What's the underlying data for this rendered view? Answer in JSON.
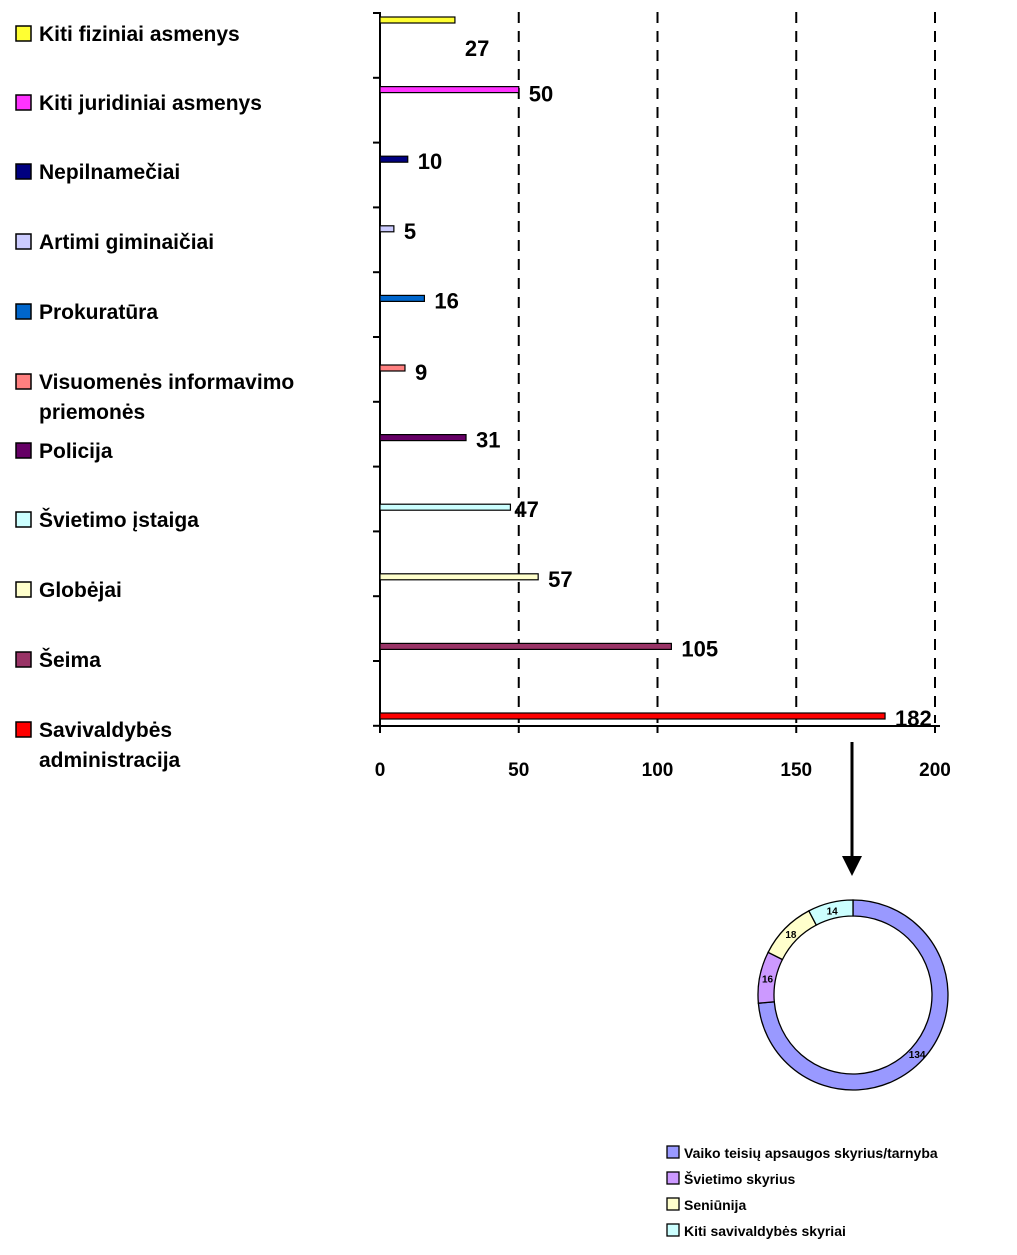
{
  "chart_data": [
    {
      "type": "bar",
      "orientation": "horizontal",
      "categories": [
        "Kiti fiziniai asmenys",
        "Kiti juridiniai asmenys",
        "Nepilnamečiai",
        "Artimi giminaičiai",
        "Prokuratūra",
        "Visuomenės informavimo priemonės",
        "Policija",
        "Švietimo įstaiga",
        "Globėjai",
        "Šeima",
        "Savivaldybės administracija"
      ],
      "legend_lines": [
        [
          "Kiti fiziniai asmenys"
        ],
        [
          "Kiti juridiniai asmenys"
        ],
        [
          "Nepilnamečiai"
        ],
        [
          "Artimi giminaičiai"
        ],
        [
          "Prokuratūra"
        ],
        [
          "Visuomenės informavimo",
          "priemonės"
        ],
        [
          "Policija"
        ],
        [
          "Švietimo įstaiga"
        ],
        [
          "Globėjai"
        ],
        [
          "Šeima"
        ],
        [
          "Savivaldybės",
          "administracija"
        ]
      ],
      "values": [
        27,
        50,
        10,
        5,
        16,
        9,
        31,
        47,
        57,
        105,
        182
      ],
      "value_labels": [
        "27",
        "50",
        "10",
        "5",
        "16",
        "9",
        "31",
        "47",
        "57",
        "105",
        "182"
      ],
      "colors": [
        "#FFFF33",
        "#FF33FF",
        "#000080",
        "#CCCCFF",
        "#0066CC",
        "#FF8080",
        "#660066",
        "#CCFFFF",
        "#FFFFCC",
        "#993366",
        "#FF0000"
      ],
      "xlim": [
        0,
        200
      ],
      "xticks": [
        0,
        50,
        100,
        150,
        200
      ],
      "xtick_labels": [
        "0",
        "50",
        "100",
        "150",
        "200"
      ],
      "grid": "vertical dashed",
      "legend_position": "left"
    },
    {
      "type": "pie",
      "style": "donut",
      "categories": [
        "Vaiko teisių apsaugos skyrius/tarnyba",
        "Švietimo skyrius",
        "Seniūnija",
        "Kiti savivaldybės skyriai"
      ],
      "values": [
        134,
        16,
        18,
        14
      ],
      "value_labels": [
        "134",
        "16",
        "18",
        "14"
      ],
      "colors": [
        "#9999FF",
        "#CC99FF",
        "#FFFFCC",
        "#CCFFFF"
      ],
      "legend_position": "bottom"
    }
  ]
}
